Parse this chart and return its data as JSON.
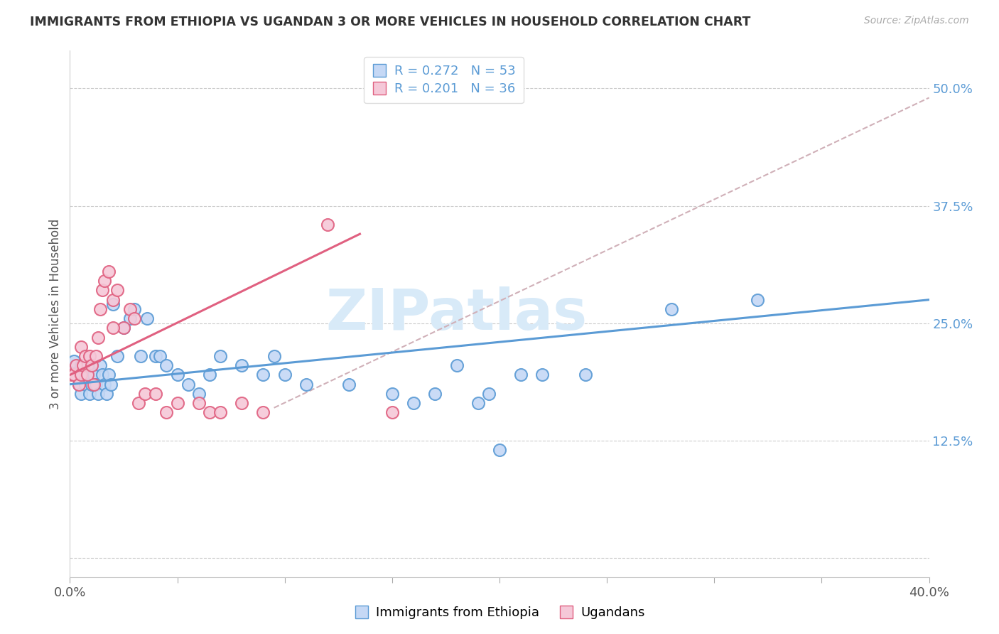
{
  "title": "IMMIGRANTS FROM ETHIOPIA VS UGANDAN 3 OR MORE VEHICLES IN HOUSEHOLD CORRELATION CHART",
  "source": "Source: ZipAtlas.com",
  "ylabel": "3 or more Vehicles in Household",
  "right_yticks": [
    0.0,
    0.125,
    0.25,
    0.375,
    0.5
  ],
  "right_yticklabels": [
    "",
    "12.5%",
    "25.0%",
    "37.5%",
    "50.0%"
  ],
  "xlim": [
    0.0,
    0.4
  ],
  "ylim": [
    -0.02,
    0.54
  ],
  "color_blue": "#c5d8f5",
  "color_pink": "#f5c8d8",
  "line_color_blue": "#5b9bd5",
  "line_color_pink": "#e06080",
  "line_color_dashed": "#d0b0b8",
  "watermark": "ZIPatlas",
  "watermark_color": "#d8eaf8",
  "blue_x": [
    0.001,
    0.002,
    0.003,
    0.004,
    0.005,
    0.005,
    0.006,
    0.007,
    0.008,
    0.009,
    0.01,
    0.011,
    0.012,
    0.013,
    0.014,
    0.015,
    0.016,
    0.017,
    0.018,
    0.019,
    0.02,
    0.022,
    0.025,
    0.028,
    0.03,
    0.033,
    0.036,
    0.04,
    0.042,
    0.045,
    0.05,
    0.055,
    0.06,
    0.065,
    0.07,
    0.08,
    0.09,
    0.095,
    0.1,
    0.11,
    0.13,
    0.15,
    0.16,
    0.17,
    0.18,
    0.19,
    0.195,
    0.2,
    0.21,
    0.22,
    0.24,
    0.28,
    0.32
  ],
  "blue_y": [
    0.2,
    0.21,
    0.195,
    0.185,
    0.205,
    0.175,
    0.195,
    0.185,
    0.205,
    0.175,
    0.185,
    0.195,
    0.185,
    0.175,
    0.205,
    0.195,
    0.185,
    0.175,
    0.195,
    0.185,
    0.27,
    0.215,
    0.245,
    0.255,
    0.265,
    0.215,
    0.255,
    0.215,
    0.215,
    0.205,
    0.195,
    0.185,
    0.175,
    0.195,
    0.215,
    0.205,
    0.195,
    0.215,
    0.195,
    0.185,
    0.185,
    0.175,
    0.165,
    0.175,
    0.205,
    0.165,
    0.175,
    0.115,
    0.195,
    0.195,
    0.195,
    0.265,
    0.275
  ],
  "pink_x": [
    0.001,
    0.002,
    0.003,
    0.004,
    0.005,
    0.005,
    0.006,
    0.007,
    0.008,
    0.009,
    0.01,
    0.011,
    0.012,
    0.013,
    0.014,
    0.015,
    0.016,
    0.018,
    0.02,
    0.022,
    0.025,
    0.028,
    0.03,
    0.032,
    0.035,
    0.04,
    0.045,
    0.05,
    0.06,
    0.065,
    0.07,
    0.08,
    0.09,
    0.12,
    0.15,
    0.02
  ],
  "pink_y": [
    0.195,
    0.195,
    0.205,
    0.185,
    0.195,
    0.225,
    0.205,
    0.215,
    0.195,
    0.215,
    0.205,
    0.185,
    0.215,
    0.235,
    0.265,
    0.285,
    0.295,
    0.305,
    0.275,
    0.285,
    0.245,
    0.265,
    0.255,
    0.165,
    0.175,
    0.175,
    0.155,
    0.165,
    0.165,
    0.155,
    0.155,
    0.165,
    0.155,
    0.355,
    0.155,
    0.245
  ],
  "blue_trend": [
    0.0,
    0.4,
    0.185,
    0.275
  ],
  "pink_trend": [
    0.0,
    0.135,
    0.195,
    0.345
  ],
  "dashed_trend": [
    0.095,
    0.4,
    0.16,
    0.49
  ]
}
